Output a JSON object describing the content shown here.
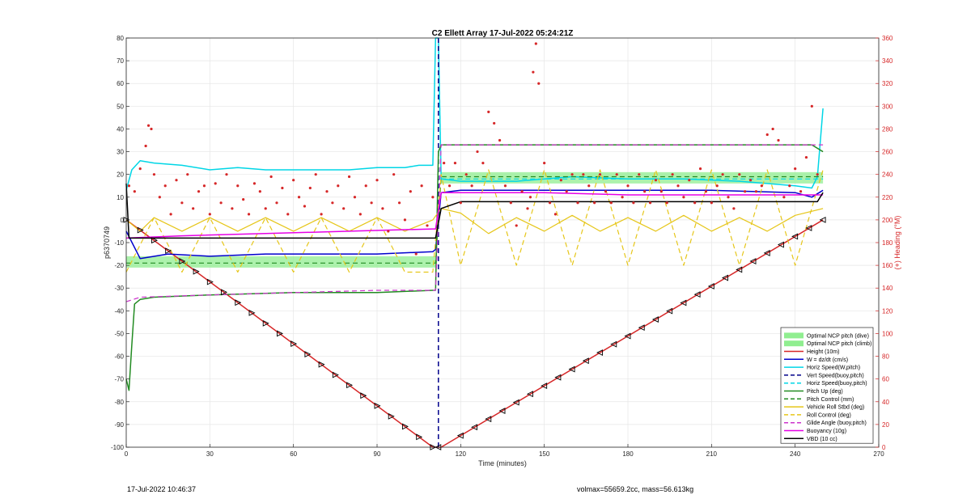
{
  "chart_data": {
    "type": "line",
    "title": "C2 Ellett Array 17-Jul-2022 05:24:21Z",
    "xlabel": "Time (minutes)",
    "ylabel": "p6370749",
    "ylabel_right": "(+) Heading (°M)",
    "xlim": [
      0,
      270
    ],
    "ylim": [
      -100,
      80
    ],
    "ylim_right": [
      0,
      360
    ],
    "xticks": [
      0,
      30,
      60,
      90,
      120,
      150,
      180,
      210,
      240,
      270
    ],
    "yticks": [
      -100,
      -90,
      -80,
      -70,
      -60,
      -50,
      -40,
      -30,
      -20,
      -10,
      0,
      10,
      20,
      30,
      40,
      50,
      60,
      70,
      80
    ],
    "yticks_right": [
      0,
      20,
      40,
      60,
      80,
      100,
      120,
      140,
      160,
      180,
      200,
      220,
      240,
      260,
      280,
      300,
      320,
      340,
      360
    ],
    "grid": true,
    "legend_position": "bottom-right",
    "bands": [
      {
        "name": "Optimal NCP pitch (dive)",
        "color": "#90ee90",
        "x": [
          0,
          111
        ],
        "y": [
          -21,
          -16
        ]
      },
      {
        "name": "Optimal NCP pitch (climb)",
        "color": "#90ee90",
        "x": [
          113,
          250
        ],
        "y": [
          16,
          21
        ]
      }
    ],
    "series": [
      {
        "name": "Height (10m)",
        "color": "#d62728",
        "style": "solid",
        "width": 1.5,
        "x": [
          0,
          110,
          113,
          250
        ],
        "y": [
          0,
          -100,
          -100,
          0
        ]
      },
      {
        "name": "W = dz/dt (cm/s)",
        "color": "#0000cd",
        "style": "solid",
        "width": 1.5,
        "x": [
          0,
          5,
          15,
          30,
          50,
          70,
          90,
          110,
          111,
          113,
          120,
          150,
          180,
          210,
          240,
          246,
          250
        ],
        "y": [
          -5,
          -17,
          -15,
          -16,
          -15,
          -15,
          -15,
          -14,
          -13,
          12,
          13,
          13,
          13,
          13,
          12,
          10,
          13
        ]
      },
      {
        "name": "Horiz Speed(W,pitch)",
        "color": "#00d6e6",
        "style": "solid",
        "width": 1.5,
        "x": [
          0,
          2,
          5,
          10,
          20,
          30,
          40,
          50,
          60,
          70,
          80,
          90,
          100,
          105,
          110,
          111,
          112,
          113,
          120,
          140,
          160,
          180,
          200,
          220,
          240,
          246,
          248,
          250
        ],
        "y": [
          13,
          22,
          26,
          25,
          24,
          22,
          23,
          22,
          22,
          22,
          22,
          23,
          23,
          24,
          24,
          80,
          80,
          18,
          17,
          17,
          19,
          18,
          18,
          17,
          15,
          14,
          19,
          49
        ]
      },
      {
        "name": "Vert Speed(buoy,pitch)",
        "color": "#00008b",
        "style": "dashed",
        "width": 1.5,
        "x": [
          112,
          112
        ],
        "y": [
          -100,
          80
        ]
      },
      {
        "name": "Horiz Speed(buoy,pitch)",
        "color": "#00d6e6",
        "style": "dashed",
        "width": 1.2,
        "x": [
          113,
          250
        ],
        "y": [
          18,
          18
        ]
      },
      {
        "name": "Pitch Up (deg)",
        "color": "#228b22",
        "style": "solid",
        "width": 1.5,
        "x": [
          0,
          1,
          2,
          3,
          5,
          10,
          30,
          60,
          90,
          110,
          111,
          112,
          113,
          120,
          150,
          180,
          210,
          240,
          246,
          250
        ],
        "y": [
          -70,
          -75,
          -55,
          -37,
          -35,
          -34,
          -33,
          -32,
          -32,
          -31,
          -31,
          30,
          33,
          33,
          33,
          33,
          33,
          33,
          33,
          30
        ]
      },
      {
        "name": "Pitch Control (mm)",
        "color": "#228b22",
        "style": "dashed",
        "width": 1.2,
        "x": [
          0,
          111,
          113,
          250
        ],
        "y": [
          -19,
          -19,
          19,
          19
        ]
      },
      {
        "name": "Vehicle Roll Stbd (deg)",
        "color": "#e6c619",
        "style": "solid",
        "width": 1.2,
        "x": [
          0,
          5,
          10,
          20,
          30,
          40,
          50,
          60,
          70,
          80,
          90,
          100,
          110,
          113,
          120,
          130,
          140,
          150,
          160,
          170,
          180,
          190,
          200,
          210,
          220,
          230,
          240,
          250
        ],
        "y": [
          0,
          -5,
          1,
          -5,
          1,
          -5,
          1,
          -5,
          1,
          -5,
          1,
          -5,
          0,
          5,
          3,
          -6,
          1,
          -5,
          2,
          -5,
          1,
          -5,
          2,
          -5,
          1,
          -5,
          2,
          5
        ]
      },
      {
        "name": "Roll Control (deg)",
        "color": "#e6c619",
        "style": "dashed",
        "width": 1.2,
        "x": [
          0,
          10,
          20,
          30,
          40,
          50,
          60,
          70,
          80,
          90,
          100,
          110,
          113,
          120,
          130,
          140,
          150,
          160,
          170,
          180,
          190,
          200,
          210,
          220,
          230,
          240,
          250
        ],
        "y": [
          -23,
          1,
          -23,
          1,
          -23,
          1,
          -23,
          1,
          -23,
          1,
          -23,
          -23,
          20,
          -20,
          22,
          -20,
          22,
          -20,
          22,
          -20,
          22,
          -20,
          22,
          -20,
          22,
          -20,
          22
        ]
      },
      {
        "name": "Glide Angle (buoy,pitch)",
        "color": "#cc33cc",
        "style": "dashed",
        "width": 1.2,
        "x": [
          0,
          5,
          30,
          60,
          90,
          110,
          111,
          113,
          150,
          180,
          210,
          240,
          250
        ],
        "y": [
          -36,
          -34,
          -33,
          -32,
          -31,
          -31,
          -31,
          33,
          33,
          33,
          33,
          33,
          33
        ]
      },
      {
        "name": "Buoyancy (10g)",
        "color": "#e600e6",
        "style": "solid",
        "width": 1.5,
        "x": [
          0,
          20,
          50,
          80,
          110,
          111,
          113,
          120,
          150,
          180,
          210,
          240,
          250
        ],
        "y": [
          -8,
          -7,
          -6,
          -5,
          -4,
          -4,
          12,
          12,
          12,
          11,
          11,
          11,
          11
        ]
      },
      {
        "name": "VBD (10 cc)",
        "color": "#000000",
        "style": "solid",
        "width": 1.5,
        "x": [
          0,
          1,
          111,
          113,
          120,
          150,
          180,
          210,
          240,
          248,
          250
        ],
        "y": [
          16,
          -8,
          -8,
          5,
          8,
          8,
          8,
          8,
          8,
          8,
          12
        ]
      }
    ],
    "heading_points": {
      "name": "Heading",
      "color": "#d62728",
      "axis": "right",
      "x": [
        1,
        3,
        5,
        7,
        8,
        9,
        10,
        12,
        14,
        16,
        18,
        20,
        22,
        24,
        26,
        28,
        30,
        32,
        34,
        36,
        38,
        40,
        42,
        44,
        46,
        48,
        50,
        52,
        54,
        56,
        58,
        60,
        62,
        64,
        66,
        68,
        70,
        72,
        74,
        76,
        78,
        80,
        82,
        84,
        86,
        88,
        90,
        92,
        94,
        96,
        98,
        100,
        102,
        104,
        106,
        108,
        110,
        114,
        116,
        118,
        120,
        122,
        124,
        126,
        128,
        130,
        132,
        134,
        136,
        138,
        140,
        142,
        144,
        145,
        146,
        147,
        148,
        150,
        152,
        154,
        156,
        158,
        160,
        162,
        164,
        166,
        168,
        170,
        172,
        174,
        176,
        178,
        180,
        182,
        184,
        186,
        188,
        190,
        192,
        194,
        196,
        198,
        200,
        202,
        204,
        206,
        208,
        210,
        212,
        214,
        216,
        218,
        220,
        222,
        224,
        226,
        228,
        230,
        232,
        234,
        236,
        238,
        240,
        242,
        244,
        246,
        248
      ],
      "y": [
        230,
        225,
        245,
        265,
        283,
        280,
        240,
        220,
        230,
        205,
        235,
        215,
        240,
        210,
        225,
        230,
        205,
        232,
        215,
        240,
        210,
        230,
        218,
        205,
        232,
        225,
        210,
        238,
        215,
        228,
        205,
        235,
        220,
        212,
        228,
        240,
        205,
        225,
        215,
        230,
        210,
        238,
        220,
        205,
        230,
        215,
        235,
        210,
        190,
        240,
        215,
        200,
        225,
        170,
        230,
        195,
        220,
        250,
        230,
        250,
        215,
        240,
        230,
        260,
        250,
        295,
        285,
        270,
        230,
        215,
        195,
        225,
        210,
        220,
        330,
        355,
        320,
        250,
        215,
        205,
        235,
        225,
        240,
        215,
        240,
        230,
        215,
        240,
        225,
        215,
        240,
        220,
        230,
        215,
        240,
        225,
        215,
        235,
        225,
        215,
        240,
        230,
        220,
        235,
        215,
        245,
        225,
        215,
        230,
        240,
        220,
        210,
        240,
        225,
        235,
        225,
        230,
        275,
        280,
        270,
        220,
        230,
        245,
        225,
        255,
        300,
        240
      ]
    },
    "markers": {
      "name": "Height markers",
      "x": [
        0,
        5,
        10,
        15,
        20,
        25,
        30,
        35,
        40,
        45,
        50,
        55,
        60,
        65,
        70,
        75,
        80,
        85,
        90,
        95,
        100,
        105,
        110,
        112,
        120,
        125,
        130,
        135,
        140,
        145,
        150,
        155,
        160,
        165,
        170,
        175,
        180,
        185,
        190,
        195,
        200,
        205,
        210,
        215,
        220,
        225,
        230,
        235,
        240,
        245,
        250
      ],
      "y": [
        0,
        -4.5,
        -9,
        -13.6,
        -18.2,
        -22.7,
        -27.3,
        -31.8,
        -36.4,
        -40.9,
        -45.5,
        -50,
        -54.5,
        -59.1,
        -63.6,
        -68.2,
        -72.7,
        -77.3,
        -81.8,
        -86.4,
        -90.9,
        -95.5,
        -100,
        -100,
        -94.9,
        -91.2,
        -87.6,
        -84,
        -80.3,
        -76.6,
        -73,
        -69.3,
        -65.7,
        -62,
        -58.4,
        -54.7,
        -51.1,
        -47.4,
        -43.8,
        -40.1,
        -36.5,
        -32.8,
        -29.2,
        -25.5,
        -21.9,
        -18.2,
        -14.6,
        -10.9,
        -7.3,
        -3.6,
        0
      ]
    }
  },
  "footer": {
    "left": "17-Jul-2022 10:46:37",
    "right": "volmax=55659.2cc, mass=56.613kg"
  }
}
